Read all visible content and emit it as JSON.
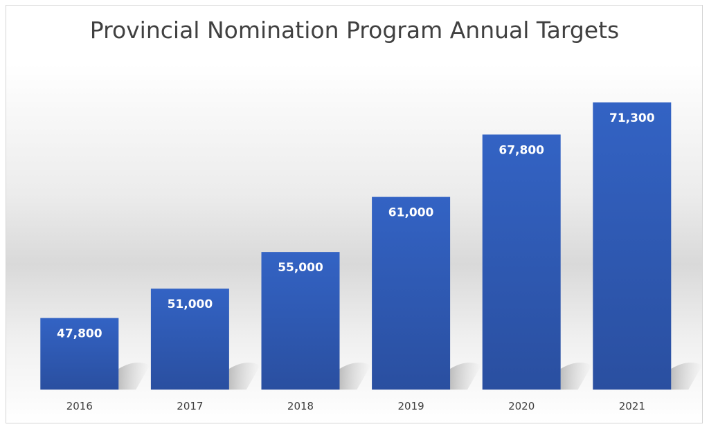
{
  "chart_data": {
    "type": "bar",
    "title": "Provincial Nomination Program Annual Targets",
    "categories": [
      "2016",
      "2017",
      "2018",
      "2019",
      "2020",
      "2021"
    ],
    "values": [
      47800,
      51000,
      55000,
      61000,
      67800,
      71300
    ],
    "value_labels": [
      "47,800",
      "51,000",
      "55,000",
      "61,000",
      "67,800",
      "71,300"
    ],
    "xlabel": "",
    "ylabel": "",
    "ylim": [
      40000,
      75000
    ],
    "grid": false,
    "legend": "none",
    "colors": {
      "bar_top": "#3363c4",
      "bar_bottom": "#2a4fa0",
      "label": "#ffffff"
    }
  }
}
